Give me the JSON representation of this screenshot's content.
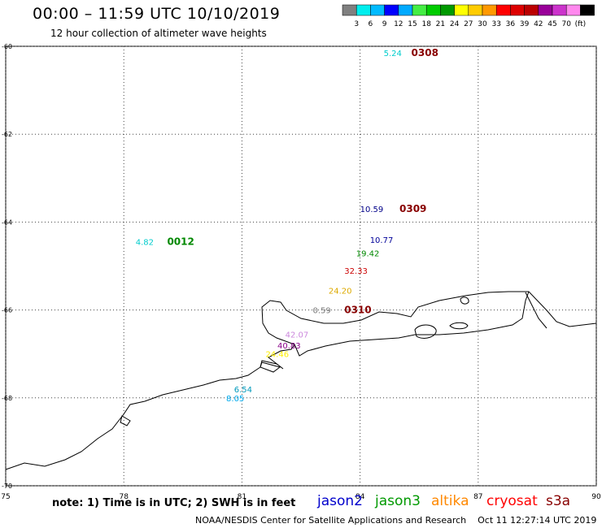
{
  "header": {
    "title": "00:00 – 11:59 UTC 10/10/2019",
    "subtitle": "12 hour collection of altimeter wave heights"
  },
  "colorbar": {
    "colors": [
      "#808080",
      "#00eeee",
      "#00bbff",
      "#0000ff",
      "#00aaff",
      "#44ee44",
      "#00cc00",
      "#009900",
      "#ffff00",
      "#ffcc00",
      "#ff9900",
      "#ff0000",
      "#dd0000",
      "#bb0000",
      "#990099",
      "#cc33cc",
      "#ff88ee",
      "#000000"
    ],
    "labels": [
      "3",
      "6",
      "9",
      "12",
      "15",
      "18",
      "21",
      "24",
      "27",
      "30",
      "33",
      "36",
      "39",
      "42",
      "45",
      "70",
      "(ft)"
    ]
  },
  "map": {
    "lon_ticks": [
      "75",
      "78",
      "81",
      "84",
      "87",
      "90"
    ],
    "lat_ticks": [
      "-60",
      "-62",
      "-64",
      "-66",
      "-68",
      "-70"
    ],
    "lon_range": [
      75,
      90
    ],
    "lat_range": [
      -60,
      -70
    ],
    "grid": true,
    "observations": [
      {
        "text": "5.24",
        "color": "#00cccc",
        "lon": 84.6,
        "lat": -60.15
      },
      {
        "text": "0308",
        "color": "#880000",
        "lon": 85.3,
        "lat": -60.15,
        "kind": "time"
      },
      {
        "text": "10.59",
        "color": "#000088",
        "lon": 84.0,
        "lat": -63.7
      },
      {
        "text": "0309",
        "color": "#880000",
        "lon": 85.0,
        "lat": -63.7,
        "kind": "time"
      },
      {
        "text": "4.82",
        "color": "#00cccc",
        "lon": 78.3,
        "lat": -64.45
      },
      {
        "text": "0012",
        "color": "#008800",
        "lon": 79.1,
        "lat": -64.45,
        "kind": "time"
      },
      {
        "text": "10.77",
        "color": "#000099",
        "lon": 84.25,
        "lat": -64.4
      },
      {
        "text": "19.42",
        "color": "#008800",
        "lon": 83.9,
        "lat": -64.7
      },
      {
        "text": "32.33",
        "color": "#cc0000",
        "lon": 83.6,
        "lat": -65.1
      },
      {
        "text": "24.20",
        "color": "#ddaa00",
        "lon": 83.2,
        "lat": -65.55
      },
      {
        "text": "0.59",
        "color": "#777777",
        "lon": 82.8,
        "lat": -66.0
      },
      {
        "text": "0310",
        "color": "#880000",
        "lon": 83.6,
        "lat": -66.0,
        "kind": "time"
      },
      {
        "text": "42.07",
        "color": "#cc88dd",
        "lon": 82.1,
        "lat": -66.55
      },
      {
        "text": "40.83",
        "color": "#880088",
        "lon": 81.9,
        "lat": -66.8
      },
      {
        "text": "24.46",
        "color": "#ffee00",
        "lon": 81.6,
        "lat": -67.0
      },
      {
        "text": "6.54",
        "color": "#0099bb",
        "lon": 80.8,
        "lat": -67.8
      },
      {
        "text": "8.05",
        "color": "#00aaee",
        "lon": 80.6,
        "lat": -68.0
      }
    ]
  },
  "footer": {
    "note": "note: 1) Time is in UTC; 2) SWH is in feet",
    "legend": [
      {
        "name": "jason2",
        "color": "#0000cc"
      },
      {
        "name": "jason3",
        "color": "#009900"
      },
      {
        "name": "altika",
        "color": "#ff8800"
      },
      {
        "name": "cryosat",
        "color": "#ff0000"
      },
      {
        "name": "s3a",
        "color": "#880000"
      }
    ],
    "credit": "NOAA/NESDIS Center for Satellite Applications and Research",
    "timestamp": "Oct 11 12:27:14 UTC 2019"
  }
}
